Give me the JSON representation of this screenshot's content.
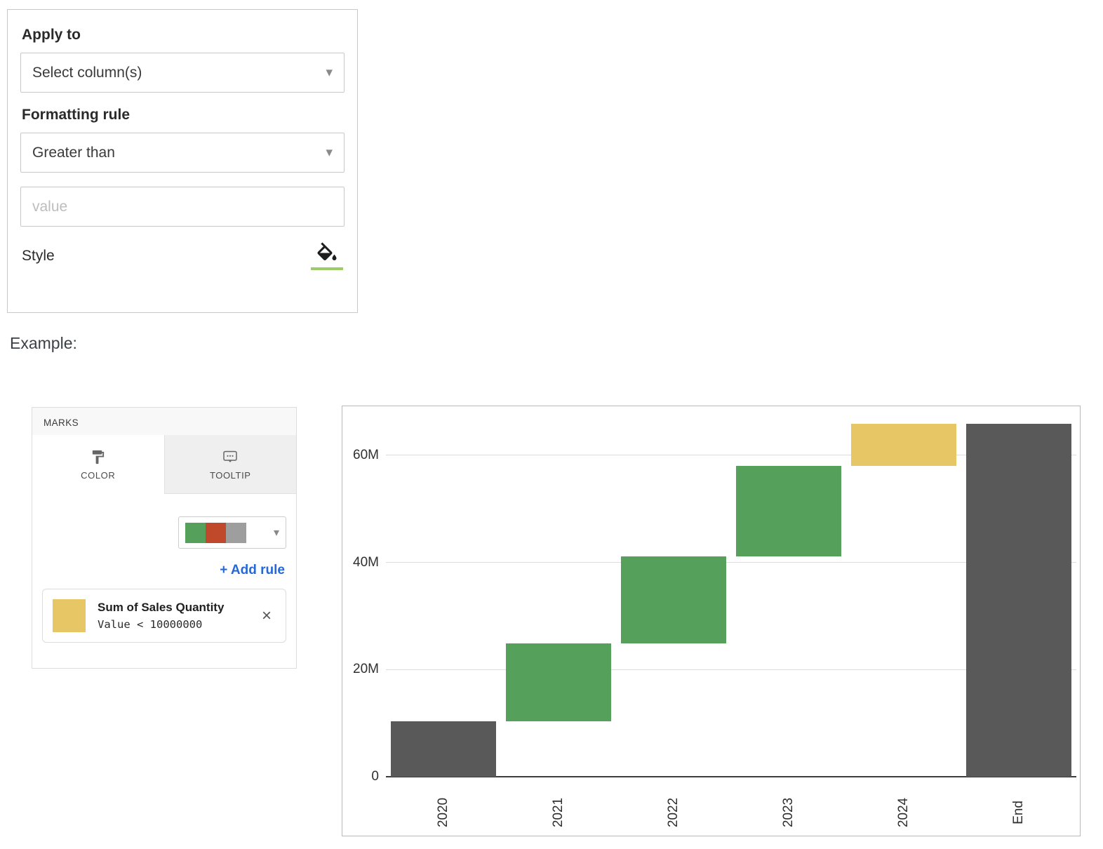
{
  "format_panel": {
    "apply_to_label": "Apply to",
    "apply_to_value": "Select column(s)",
    "formatting_rule_label": "Formatting rule",
    "formatting_rule_value": "Greater than",
    "value_placeholder": "value",
    "style_label": "Style"
  },
  "example_label": "Example:",
  "marks_panel": {
    "title": "MARKS",
    "tabs": [
      {
        "label": "COLOR"
      },
      {
        "label": "TOOLTIP"
      }
    ],
    "palette_colors": [
      "#55a05a",
      "#c0492b",
      "#9e9e9e"
    ],
    "add_rule_label": "+ Add rule",
    "rule": {
      "swatch_color": "#e7c666",
      "title": "Sum of Sales Quantity",
      "condition": "Value < 10000000"
    }
  },
  "chart_data": {
    "type": "bar",
    "subtype": "waterfall",
    "categories": [
      "2020",
      "2021",
      "2022",
      "2023",
      "2024",
      "End"
    ],
    "bars": [
      {
        "category": "2020",
        "start": 0,
        "end": 10.4,
        "color": "#595959"
      },
      {
        "category": "2021",
        "start": 10.4,
        "end": 24.9,
        "color": "#55a05a"
      },
      {
        "category": "2022",
        "start": 24.9,
        "end": 41.1,
        "color": "#55a05a"
      },
      {
        "category": "2023",
        "start": 41.1,
        "end": 58.0,
        "color": "#55a05a"
      },
      {
        "category": "2024",
        "start": 58.0,
        "end": 65.9,
        "color": "#e7c666"
      },
      {
        "category": "End",
        "start": 0,
        "end": 65.9,
        "color": "#595959"
      }
    ],
    "unit": "M",
    "y_ticks": [
      {
        "value": 0,
        "label": "0"
      },
      {
        "value": 20,
        "label": "20M"
      },
      {
        "value": 40,
        "label": "40M"
      },
      {
        "value": 60,
        "label": "60M"
      }
    ],
    "ylim": [
      0,
      68.5
    ],
    "grid": true,
    "x_label_rotation": -90
  }
}
